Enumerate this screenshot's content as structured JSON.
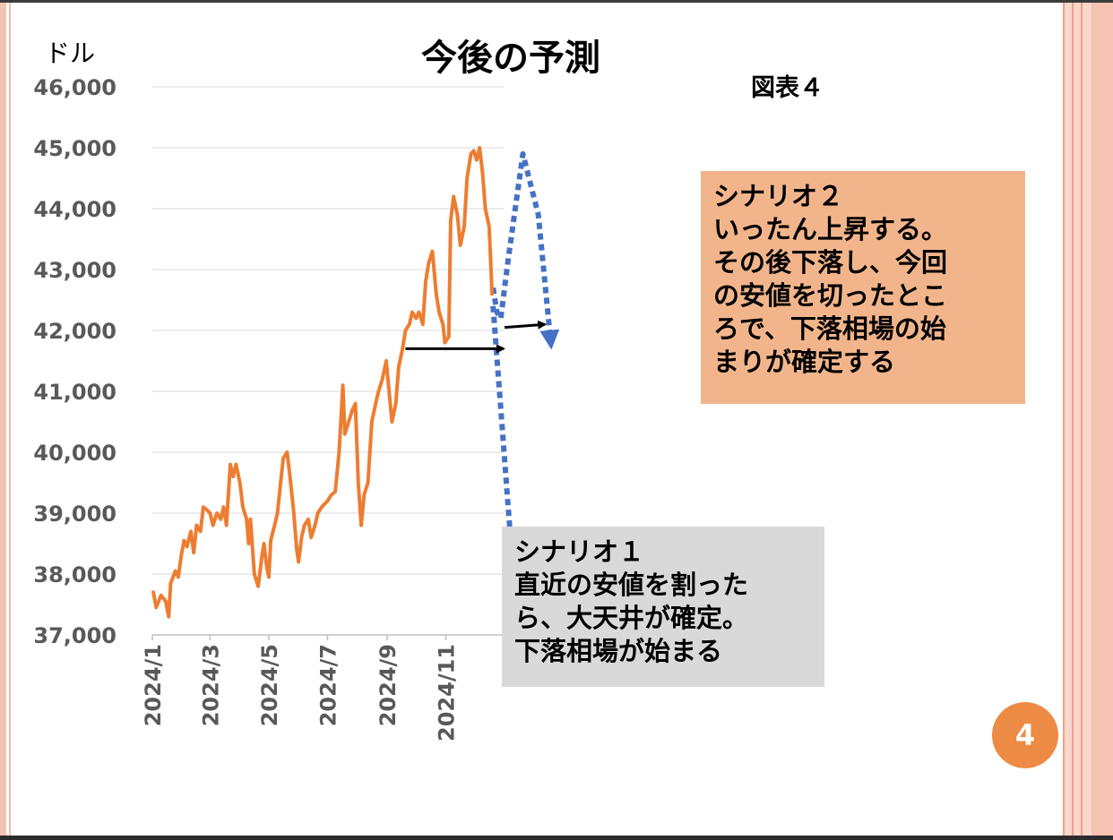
{
  "slide": {
    "title": "今後の予測",
    "figure_label": "図表４",
    "unit_label": "ドル",
    "page_number": "4"
  },
  "scenarios": [
    {
      "name": "scenario-1",
      "lines": [
        "シナリオ１",
        "直近の安値を割った",
        "ら、大天井が確定。",
        "下落相場が始まる"
      ]
    },
    {
      "name": "scenario-2",
      "lines": [
        "シナリオ２",
        "いったん上昇する。",
        "その後下落し、今回",
        "の安値を切ったとこ",
        "ろで、下落相場の始",
        "まりが確定する"
      ]
    }
  ],
  "colors": {
    "series": "#ed7d31",
    "forecast": "#4472c4",
    "arrow": "#000000",
    "grid": "#d9d9d9",
    "tick_text": "#595959",
    "scenario_1_bg": "#d9d9d9",
    "scenario_2_bg": "#f2b58b",
    "badge": "#ed8a44"
  },
  "chart_data": {
    "type": "line",
    "ylim": [
      37000,
      46000
    ],
    "y_ticks": [
      "37,000",
      "38,000",
      "39,000",
      "40,000",
      "41,000",
      "42,000",
      "43,000",
      "44,000",
      "45,000",
      "46,000"
    ],
    "y_tick_values": [
      37000,
      38000,
      39000,
      40000,
      41000,
      42000,
      43000,
      44000,
      45000,
      46000
    ],
    "x_ticks": [
      "2024/1",
      "2024/3",
      "2024/5",
      "2024/7",
      "2024/9",
      "2024/11"
    ],
    "x_tick_dates": [
      "2024-01-01",
      "2024-03-01",
      "2024-05-01",
      "2024-07-01",
      "2024-09-01",
      "2024-11-01"
    ],
    "x_end": "2024-12-31",
    "grid": true,
    "series": [
      {
        "points": [
          [
            "2024-01-02",
            37700
          ],
          [
            "2024-01-05",
            37450
          ],
          [
            "2024-01-10",
            37650
          ],
          [
            "2024-01-15",
            37550
          ],
          [
            "2024-01-18",
            37300
          ],
          [
            "2024-01-20",
            37850
          ],
          [
            "2024-01-25",
            38050
          ],
          [
            "2024-01-28",
            37950
          ],
          [
            "2024-01-31",
            38300
          ],
          [
            "2024-02-03",
            38550
          ],
          [
            "2024-02-06",
            38450
          ],
          [
            "2024-02-10",
            38700
          ],
          [
            "2024-02-13",
            38350
          ],
          [
            "2024-02-16",
            38800
          ],
          [
            "2024-02-20",
            38700
          ],
          [
            "2024-02-23",
            39100
          ],
          [
            "2024-02-27",
            39050
          ],
          [
            "2024-03-01",
            39000
          ],
          [
            "2024-03-04",
            38800
          ],
          [
            "2024-03-08",
            39000
          ],
          [
            "2024-03-12",
            38900
          ],
          [
            "2024-03-15",
            39100
          ],
          [
            "2024-03-18",
            38800
          ],
          [
            "2024-03-22",
            39800
          ],
          [
            "2024-03-25",
            39600
          ],
          [
            "2024-03-28",
            39800
          ],
          [
            "2024-04-01",
            39500
          ],
          [
            "2024-04-04",
            39100
          ],
          [
            "2024-04-08",
            38900
          ],
          [
            "2024-04-10",
            38500
          ],
          [
            "2024-04-12",
            38900
          ],
          [
            "2024-04-16",
            38000
          ],
          [
            "2024-04-20",
            37800
          ],
          [
            "2024-04-24",
            38300
          ],
          [
            "2024-04-26",
            38500
          ],
          [
            "2024-04-29",
            38100
          ],
          [
            "2024-05-01",
            37950
          ],
          [
            "2024-05-03",
            38550
          ],
          [
            "2024-05-07",
            38800
          ],
          [
            "2024-05-10",
            39000
          ],
          [
            "2024-05-13",
            39450
          ],
          [
            "2024-05-16",
            39900
          ],
          [
            "2024-05-20",
            40000
          ],
          [
            "2024-05-23",
            39600
          ],
          [
            "2024-05-27",
            39000
          ],
          [
            "2024-05-30",
            38400
          ],
          [
            "2024-06-01",
            38200
          ],
          [
            "2024-06-04",
            38600
          ],
          [
            "2024-06-07",
            38800
          ],
          [
            "2024-06-11",
            38900
          ],
          [
            "2024-06-14",
            38600
          ],
          [
            "2024-06-18",
            38800
          ],
          [
            "2024-06-21",
            39000
          ],
          [
            "2024-06-25",
            39100
          ],
          [
            "2024-06-28",
            39150
          ],
          [
            "2024-07-01",
            39200
          ],
          [
            "2024-07-05",
            39300
          ],
          [
            "2024-07-09",
            39350
          ],
          [
            "2024-07-13",
            40000
          ],
          [
            "2024-07-17",
            41100
          ],
          [
            "2024-07-19",
            40300
          ],
          [
            "2024-07-23",
            40500
          ],
          [
            "2024-07-27",
            40700
          ],
          [
            "2024-07-30",
            40800
          ],
          [
            "2024-08-02",
            39500
          ],
          [
            "2024-08-05",
            38800
          ],
          [
            "2024-08-08",
            39300
          ],
          [
            "2024-08-12",
            39500
          ],
          [
            "2024-08-16",
            40500
          ],
          [
            "2024-08-20",
            40800
          ],
          [
            "2024-08-23",
            41000
          ],
          [
            "2024-08-27",
            41200
          ],
          [
            "2024-08-31",
            41500
          ],
          [
            "2024-09-03",
            41000
          ],
          [
            "2024-09-06",
            40500
          ],
          [
            "2024-09-10",
            40800
          ],
          [
            "2024-09-13",
            41400
          ],
          [
            "2024-09-17",
            41700
          ],
          [
            "2024-09-20",
            42000
          ],
          [
            "2024-09-24",
            42100
          ],
          [
            "2024-09-27",
            42300
          ],
          [
            "2024-10-01",
            42200
          ],
          [
            "2024-10-04",
            42300
          ],
          [
            "2024-10-08",
            42100
          ],
          [
            "2024-10-11",
            42800
          ],
          [
            "2024-10-14",
            43100
          ],
          [
            "2024-10-18",
            43300
          ],
          [
            "2024-10-22",
            42600
          ],
          [
            "2024-10-25",
            42300
          ],
          [
            "2024-10-29",
            42100
          ],
          [
            "2024-10-31",
            41800
          ],
          [
            "2024-11-04",
            41900
          ],
          [
            "2024-11-06",
            43800
          ],
          [
            "2024-11-09",
            44200
          ],
          [
            "2024-11-13",
            43900
          ],
          [
            "2024-11-16",
            43400
          ],
          [
            "2024-11-20",
            43700
          ],
          [
            "2024-11-23",
            44500
          ],
          [
            "2024-11-27",
            44900
          ],
          [
            "2024-11-30",
            44950
          ],
          [
            "2024-12-03",
            44800
          ],
          [
            "2024-12-06",
            45000
          ],
          [
            "2024-12-09",
            44600
          ],
          [
            "2024-12-12",
            44000
          ],
          [
            "2024-12-16",
            43700
          ],
          [
            "2024-12-19",
            42600
          ]
        ]
      }
    ],
    "forecast_paths": [
      {
        "name": "scenario-1-path",
        "points": [
          [
            "2024-12-20",
            42400
          ],
          [
            "2025-01-10",
            38000
          ]
        ]
      },
      {
        "name": "scenario-2-path",
        "points": [
          [
            "2024-12-20",
            42700
          ],
          [
            "2024-12-24",
            42300
          ],
          [
            "2024-12-28",
            42200
          ],
          [
            "2025-01-05",
            43200
          ],
          [
            "2025-01-20",
            44900
          ],
          [
            "2025-02-05",
            43900
          ],
          [
            "2025-02-18",
            41800
          ]
        ]
      }
    ],
    "reference_arrows": [
      {
        "name": "recent-low-arrow",
        "from": [
          "2024-09-20",
          41700
        ],
        "to": [
          "2024-12-31",
          41700
        ]
      },
      {
        "name": "scenario-2-low-arrow",
        "from": [
          "2025-01-01",
          42050
        ],
        "to": [
          "2025-02-12",
          42100
        ]
      }
    ]
  }
}
